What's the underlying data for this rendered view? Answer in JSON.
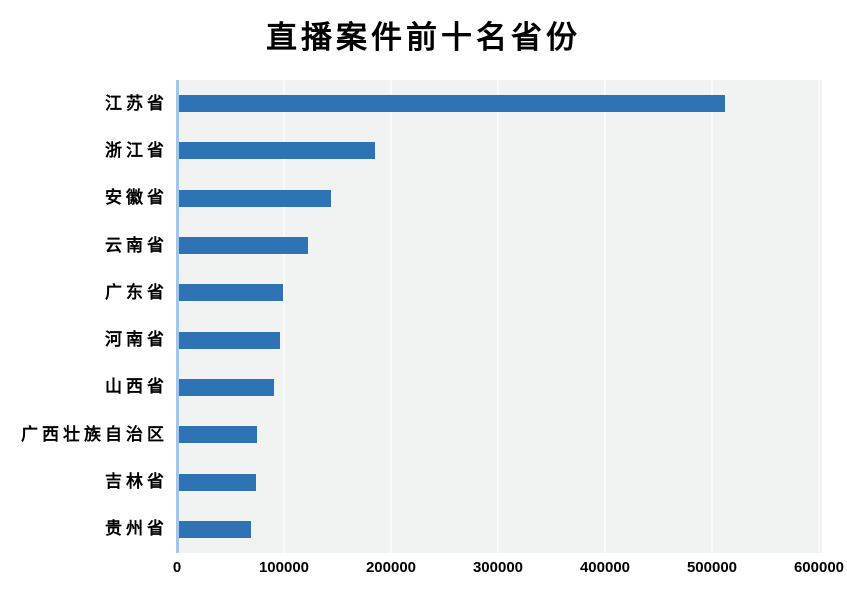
{
  "title": "直播案件前十名省份",
  "colors": {
    "bar": "#2E74B5",
    "plot_background": "#F1F2F2",
    "gridline": "#FAFAFA",
    "axis_line": "#A3C6E8",
    "text": "#000000",
    "page_background": "#FFFFFF"
  },
  "chart_data": {
    "type": "bar",
    "orientation": "horizontal",
    "title": "直播案件前十名省份",
    "categories": [
      "江苏省",
      "浙江省",
      "安徽省",
      "云南省",
      "广东省",
      "河南省",
      "山西省",
      "广西壮族自治区",
      "吉林省",
      "贵州省"
    ],
    "values": [
      512000,
      185000,
      144000,
      122000,
      99000,
      96000,
      91000,
      75000,
      74000,
      69000
    ],
    "xlabel": "",
    "ylabel": "",
    "xlim": [
      0,
      600000
    ],
    "x_ticks": [
      0,
      100000,
      200000,
      300000,
      400000,
      500000,
      600000
    ],
    "x_tick_labels": [
      "0",
      "100000",
      "200000",
      "300000",
      "400000",
      "500000",
      "600000"
    ],
    "grid": "vertical-major-only",
    "legend": "none",
    "plot_area_background": "light-gray",
    "bars_sorted": "descending-top-to-bottom"
  }
}
